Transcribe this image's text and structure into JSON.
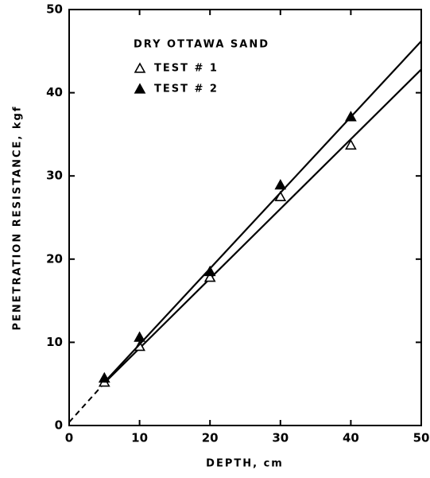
{
  "chart_data": {
    "type": "scatter",
    "xlabel": "DEPTH, cm",
    "ylabel": "PENETRATION RESISTANCE, kgf",
    "legend_title": "DRY OTTAWA SAND",
    "xlim": [
      0,
      50
    ],
    "ylim": [
      0,
      50
    ],
    "xticks": [
      0,
      10,
      20,
      30,
      40,
      50
    ],
    "yticks": [
      0,
      10,
      20,
      30,
      40,
      50
    ],
    "legend": "upper left",
    "series": [
      {
        "name": "TEST # 1",
        "color": "#000000",
        "marker": "open-triangle",
        "x": [
          5,
          10,
          20,
          30,
          40
        ],
        "values": [
          5.2,
          9.5,
          17.8,
          27.5,
          33.7
        ],
        "fit": {
          "x": [
            5,
            50
          ],
          "values": [
            5.1,
            42.8
          ]
        }
      },
      {
        "name": "TEST # 2",
        "color": "#000000",
        "marker": "filled-triangle",
        "x": [
          5,
          10,
          20,
          30,
          40
        ],
        "values": [
          5.7,
          10.6,
          18.5,
          28.9,
          37.1
        ],
        "fit": {
          "x": [
            5,
            50
          ],
          "values": [
            5.2,
            46.2
          ]
        }
      }
    ],
    "extrapolation": {
      "x": [
        0,
        5
      ],
      "values": [
        0.4,
        5.1
      ]
    }
  }
}
